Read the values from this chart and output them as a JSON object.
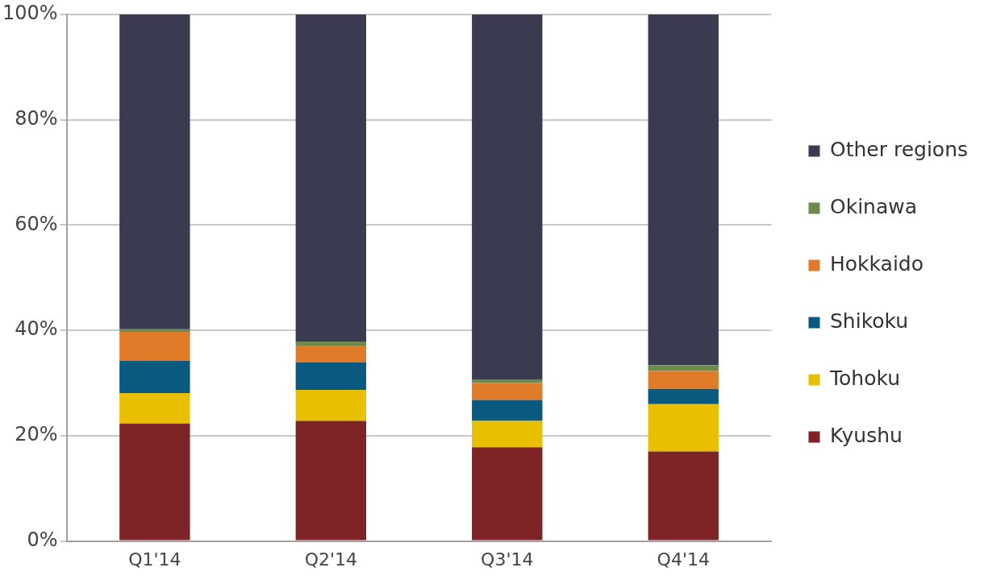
{
  "chart_data": {
    "type": "bar",
    "stacked": true,
    "categories": [
      "Q1'14",
      "Q2'14",
      "Q3'14",
      "Q4'14"
    ],
    "series": [
      {
        "name": "Kyushu",
        "color": "#7e2426",
        "values": [
          22.3,
          22.8,
          17.8,
          17.0
        ]
      },
      {
        "name": "Tohoku",
        "color": "#e8c000",
        "values": [
          5.8,
          5.9,
          5.0,
          9.0
        ]
      },
      {
        "name": "Shikoku",
        "color": "#0a5a80",
        "values": [
          6.1,
          5.2,
          4.0,
          2.9
        ]
      },
      {
        "name": "Hokkaido",
        "color": "#e07b2a",
        "values": [
          5.5,
          3.2,
          3.2,
          3.4
        ]
      },
      {
        "name": "Okinawa",
        "color": "#6e8a4a",
        "values": [
          0.5,
          0.8,
          0.7,
          1.1
        ]
      },
      {
        "name": "Other regions",
        "color": "#3a3a50",
        "values": [
          59.8,
          62.1,
          69.3,
          66.6
        ]
      }
    ],
    "ylim": [
      0,
      100
    ],
    "yticks": [
      {
        "value": 0,
        "label": "0%"
      },
      {
        "value": 20,
        "label": "20%"
      },
      {
        "value": 40,
        "label": "40%"
      },
      {
        "value": 60,
        "label": "60%"
      },
      {
        "value": 80,
        "label": "80%"
      },
      {
        "value": 100,
        "label": "100%"
      }
    ],
    "grid": "y",
    "legend": "right"
  }
}
